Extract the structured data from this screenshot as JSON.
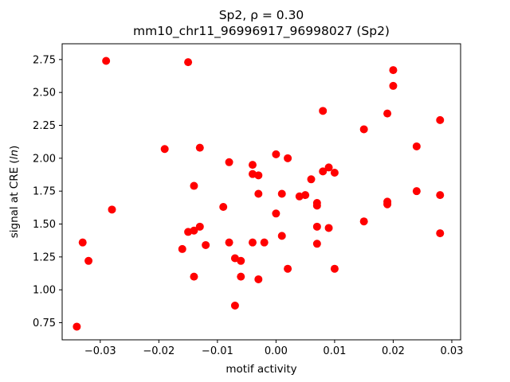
{
  "figure": {
    "title_line1": "Sp2, ρ = 0.30",
    "title_line2": "mm10_chr11_96996917_96998027 (Sp2)",
    "xlabel": "motif activity",
    "ylabel_prefix": "signal at CRE (",
    "ylabel_italic": "ln",
    "ylabel_suffix": ")"
  },
  "chart_data": {
    "type": "scatter",
    "title": "Sp2, ρ = 0.30",
    "subtitle": "mm10_chr11_96996917_96998027 (Sp2)",
    "xlabel": "motif activity",
    "ylabel": "signal at CRE (ln)",
    "marker_color": "#ff0000",
    "marker_radius": 5,
    "grid": false,
    "legend": null,
    "xlim": [
      -0.0365,
      0.0315
    ],
    "ylim": [
      0.62,
      2.87
    ],
    "xticks": [
      -0.03,
      -0.02,
      -0.01,
      0.0,
      0.01,
      0.02,
      0.03
    ],
    "xtick_labels": [
      "−0.03",
      "−0.02",
      "−0.01",
      "0.00",
      "0.01",
      "0.02",
      "0.03"
    ],
    "yticks": [
      0.75,
      1.0,
      1.25,
      1.5,
      1.75,
      2.0,
      2.25,
      2.5,
      2.75
    ],
    "ytick_labels": [
      "0.75",
      "1.00",
      "1.25",
      "1.50",
      "1.75",
      "2.00",
      "2.25",
      "2.50",
      "2.75"
    ],
    "points": [
      [
        -0.034,
        0.72
      ],
      [
        -0.033,
        1.36
      ],
      [
        -0.032,
        1.22
      ],
      [
        -0.029,
        2.74
      ],
      [
        -0.028,
        1.61
      ],
      [
        -0.019,
        2.07
      ],
      [
        -0.015,
        2.73
      ],
      [
        -0.016,
        1.31
      ],
      [
        -0.015,
        1.44
      ],
      [
        -0.014,
        1.79
      ],
      [
        -0.014,
        1.45
      ],
      [
        -0.014,
        1.1
      ],
      [
        -0.013,
        2.08
      ],
      [
        -0.013,
        1.48
      ],
      [
        -0.012,
        1.34
      ],
      [
        -0.009,
        1.63
      ],
      [
        -0.008,
        1.97
      ],
      [
        -0.008,
        1.36
      ],
      [
        -0.007,
        1.24
      ],
      [
        -0.007,
        0.88
      ],
      [
        -0.006,
        1.22
      ],
      [
        -0.006,
        1.1
      ],
      [
        -0.004,
        1.95
      ],
      [
        -0.004,
        1.88
      ],
      [
        -0.004,
        1.36
      ],
      [
        -0.003,
        1.87
      ],
      [
        -0.003,
        1.73
      ],
      [
        -0.003,
        1.08
      ],
      [
        -0.002,
        1.36
      ],
      [
        0.0,
        2.03
      ],
      [
        0.0,
        1.58
      ],
      [
        0.001,
        1.73
      ],
      [
        0.001,
        1.41
      ],
      [
        0.002,
        2.0
      ],
      [
        0.002,
        1.16
      ],
      [
        0.004,
        1.71
      ],
      [
        0.005,
        1.72
      ],
      [
        0.006,
        1.84
      ],
      [
        0.007,
        1.66
      ],
      [
        0.007,
        1.64
      ],
      [
        0.007,
        1.48
      ],
      [
        0.007,
        1.35
      ],
      [
        0.008,
        2.36
      ],
      [
        0.008,
        1.9
      ],
      [
        0.009,
        1.93
      ],
      [
        0.009,
        1.47
      ],
      [
        0.01,
        1.89
      ],
      [
        0.01,
        1.16
      ],
      [
        0.015,
        2.22
      ],
      [
        0.015,
        1.52
      ],
      [
        0.019,
        2.34
      ],
      [
        0.019,
        1.67
      ],
      [
        0.019,
        1.65
      ],
      [
        0.02,
        2.67
      ],
      [
        0.02,
        2.55
      ],
      [
        0.024,
        2.09
      ],
      [
        0.024,
        1.75
      ],
      [
        0.028,
        2.29
      ],
      [
        0.028,
        1.72
      ],
      [
        0.028,
        1.43
      ]
    ]
  }
}
